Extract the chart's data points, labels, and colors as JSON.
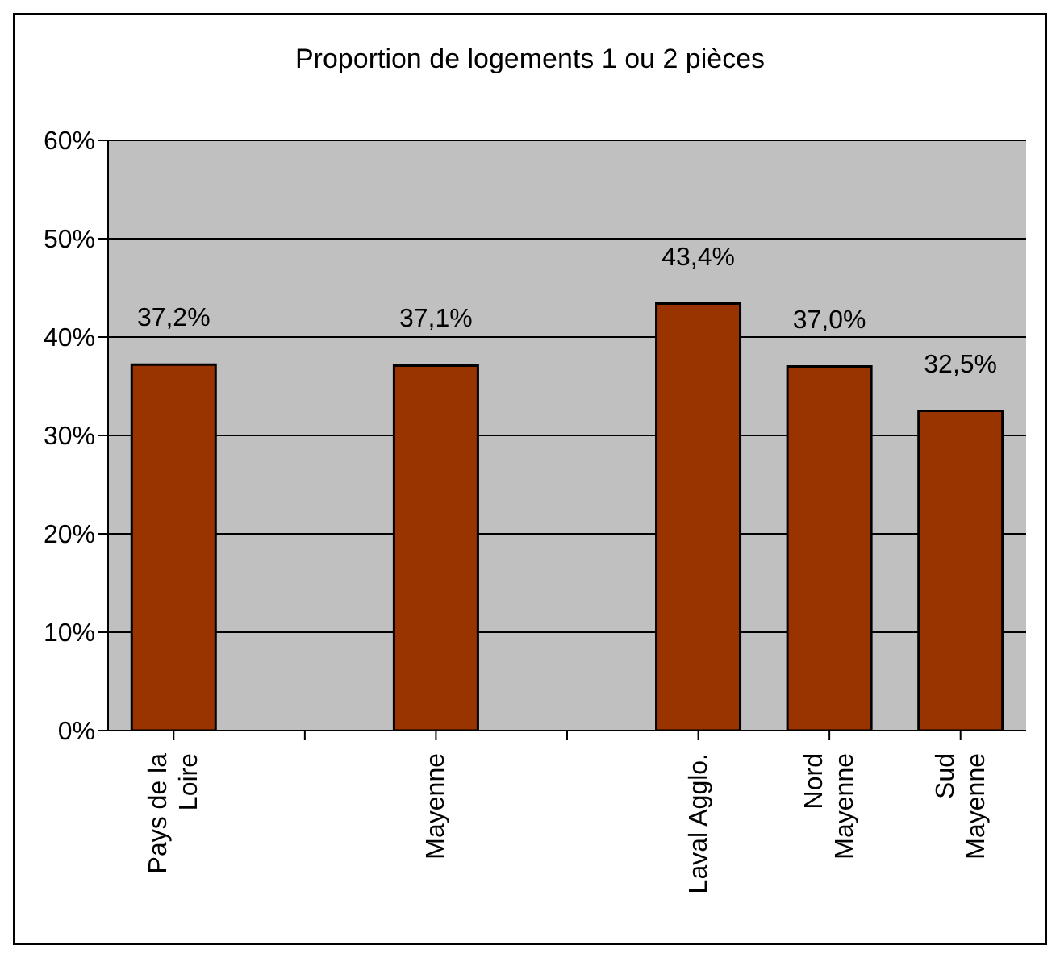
{
  "chart_data": {
    "type": "bar",
    "title": "Proportion de logements 1 ou 2 pièces",
    "categories": [
      "Pays de la Loire",
      null,
      "Mayenne",
      null,
      "Laval Agglo.",
      "Nord Mayenne",
      "Sud Mayenne"
    ],
    "values": [
      37.2,
      null,
      37.1,
      null,
      43.4,
      37.0,
      32.5
    ],
    "value_labels": [
      "37,2%",
      null,
      "37,1%",
      null,
      "43,4%",
      "37,0%",
      "32,5%"
    ],
    "color": "#993300",
    "ylim": [
      0,
      60
    ],
    "yticks": [
      {
        "value": 0,
        "label": "0%"
      },
      {
        "value": 10,
        "label": "10%"
      },
      {
        "value": 20,
        "label": "20%"
      },
      {
        "value": 30,
        "label": "30%"
      },
      {
        "value": 40,
        "label": "40%"
      },
      {
        "value": 50,
        "label": "50%"
      },
      {
        "value": 60,
        "label": "60%"
      }
    ],
    "grid": "y",
    "legend": false
  }
}
